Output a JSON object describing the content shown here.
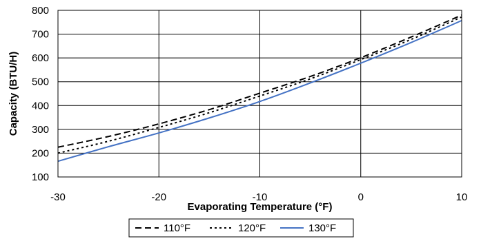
{
  "chart_data": {
    "type": "line",
    "title": "",
    "xlabel": "Evaporating Temperature (°F)",
    "ylabel": "Capacity (BTU/H)",
    "xlim": [
      -30,
      10
    ],
    "ylim": [
      100,
      800
    ],
    "xticks": [
      -30,
      -20,
      -10,
      0,
      10
    ],
    "yticks": [
      100,
      200,
      300,
      400,
      500,
      600,
      700,
      800
    ],
    "xtick_labels": [
      "-30",
      "-20",
      "-10",
      "0",
      "10"
    ],
    "ytick_labels": [
      "100",
      "200",
      "300",
      "400",
      "500",
      "600",
      "700",
      "800"
    ],
    "grid": true,
    "legend_position": "bottom-center",
    "series": [
      {
        "name": "110°F",
        "style": "dashed",
        "color": "#000000",
        "x": [
          -30,
          -25,
          -20,
          -15,
          -10,
          -5,
          0,
          5,
          10
        ],
        "values": [
          225,
          270,
          323,
          383,
          452,
          522,
          601,
          688,
          780
        ]
      },
      {
        "name": "120°F",
        "style": "dotted",
        "color": "#000000",
        "x": [
          -30,
          -25,
          -20,
          -15,
          -10,
          -5,
          0,
          5,
          10
        ],
        "values": [
          200,
          250,
          308,
          370,
          440,
          512,
          593,
          678,
          772
        ]
      },
      {
        "name": "130°F",
        "style": "solid",
        "color": "#4472C4",
        "x": [
          -30,
          -25,
          -20,
          -15,
          -10,
          -5,
          0,
          5,
          10
        ],
        "values": [
          166,
          227,
          285,
          348,
          417,
          495,
          578,
          665,
          757
        ]
      }
    ]
  }
}
